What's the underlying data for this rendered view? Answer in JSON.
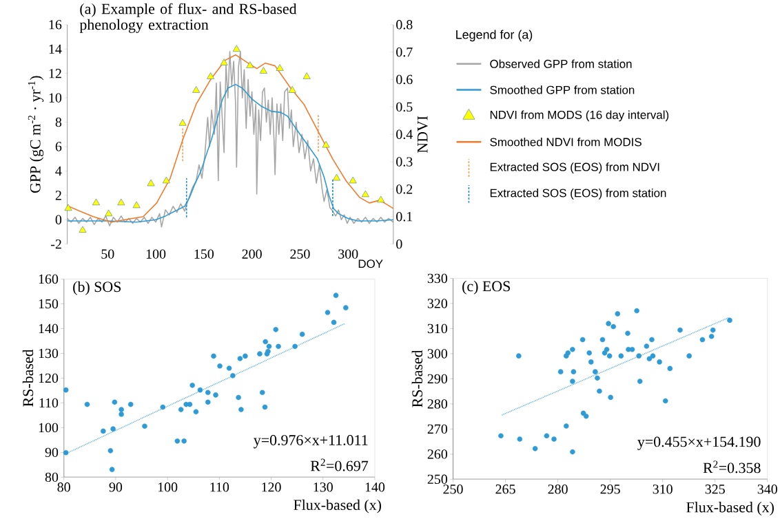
{
  "chart_data": [
    {
      "type": "line",
      "title": "(a) Example of flux- and RS-based phenology extraction",
      "xlabel": "DOY",
      "ylabel": "GPP (gC m$^{-2}$ · yr$^{-1}$)",
      "y2label": "NDVI",
      "legend_title": "Legend for (a)",
      "legend": "right",
      "xlim": [
        8,
        347
      ],
      "xticks": [
        50,
        100,
        150,
        200,
        250,
        300
      ],
      "ylim": [
        -2,
        16
      ],
      "yticks": [
        -2,
        0,
        2,
        4,
        6,
        8,
        10,
        12,
        14,
        16
      ],
      "y2lim": [
        0,
        0.8
      ],
      "y2ticks": [
        0,
        0.1,
        0.2,
        0.3,
        0.4,
        0.5,
        0.6,
        0.7,
        0.8
      ],
      "series": [
        {
          "name": "Observed GPP from station",
          "type": "line",
          "color": "#a6a6a6",
          "x": [
            8,
            12,
            16,
            20,
            24,
            28,
            32,
            36,
            40,
            44,
            48,
            52,
            56,
            60,
            64,
            68,
            72,
            76,
            80,
            84,
            88,
            92,
            96,
            100,
            104,
            106,
            110,
            114,
            118,
            122,
            126,
            130,
            134,
            138,
            142,
            145,
            148,
            151,
            154,
            156,
            158,
            161,
            163,
            165,
            167,
            169,
            171,
            173,
            175,
            177,
            179,
            181,
            183,
            184,
            186,
            188,
            190,
            192,
            194,
            196,
            198,
            200,
            202,
            204,
            205,
            207,
            209,
            211,
            213,
            215,
            217,
            219,
            221,
            223,
            224,
            226,
            228,
            230,
            232,
            234,
            237,
            239,
            241,
            243,
            246,
            249,
            252,
            255,
            258,
            261,
            264,
            267,
            270,
            273,
            275,
            278,
            281,
            284,
            287,
            290,
            293,
            296,
            299,
            302,
            306,
            310,
            314,
            318,
            322,
            326,
            330,
            334,
            338,
            342,
            347
          ],
          "values": [
            0.1,
            -0.2,
            0.2,
            -0.3,
            0.1,
            -0.2,
            0.2,
            -0.4,
            0.1,
            -0.2,
            0.3,
            -0.5,
            0.2,
            -0.2,
            0.3,
            -0.2,
            0.1,
            -0.3,
            0.1,
            -0.2,
            0.2,
            -0.3,
            0.2,
            -0.2,
            0.5,
            -0.6,
            0.8,
            0.4,
            1.1,
            0.6,
            1.3,
            0.7,
            1.7,
            2.6,
            3.2,
            4.5,
            3.4,
            5.3,
            8.4,
            6.0,
            9.0,
            7.0,
            11.2,
            3.2,
            11.3,
            8.5,
            5.5,
            12.7,
            10.0,
            13.8,
            11.0,
            13.0,
            9.5,
            4.3,
            12.5,
            13.8,
            10.0,
            12.3,
            7.5,
            11.5,
            8.5,
            10.5,
            7.0,
            9.5,
            2.1,
            9.0,
            6.5,
            10.5,
            10.8,
            8.0,
            9.8,
            7.0,
            10.0,
            6.5,
            3.7,
            9.5,
            7.0,
            9.5,
            6.5,
            10.5,
            10.8,
            7.5,
            9.0,
            6.0,
            8.0,
            5.5,
            7.0,
            5.0,
            6.5,
            4.0,
            5.0,
            3.0,
            4.5,
            2.5,
            1.5,
            2.5,
            1.0,
            0.7,
            0.3,
            0.8,
            0.0,
            0.4,
            -0.3,
            0.2,
            -0.3,
            0.1,
            -0.2,
            0.2,
            -0.3,
            0.1,
            -0.2,
            0.2,
            -0.2,
            0.1,
            -0.2
          ]
        },
        {
          "name": "Smoothed GPP from station",
          "type": "line",
          "color": "#2e9ad6",
          "x": [
            8,
            30,
            50,
            80,
            100,
            110,
            120,
            130,
            135,
            140,
            147,
            152,
            158,
            163,
            169,
            175,
            183,
            190,
            200,
            210,
            220,
            230,
            237,
            243,
            250,
            260,
            268,
            275,
            280,
            285,
            290,
            300,
            310,
            330,
            347
          ],
          "values": [
            -0.1,
            -0.1,
            -0.1,
            -0.2,
            0,
            0.3,
            0.7,
            1.1,
            1.8,
            2.8,
            4.0,
            5.2,
            6.6,
            8.0,
            9.8,
            10.8,
            11.1,
            10.8,
            9.9,
            9.3,
            8.9,
            8.8,
            8.5,
            7.8,
            7.0,
            5.9,
            5.0,
            3.5,
            2.0,
            0.9,
            0.5,
            0.1,
            -0.1,
            -0.1,
            0
          ]
        },
        {
          "name": "NDVI from MODS (16 day interval)",
          "type": "scatter",
          "axis": "y2",
          "marker": "triangle",
          "color": "#ffff00",
          "x": [
            9,
            24,
            38,
            51,
            64,
            80,
            95,
            111,
            128,
            142,
            157,
            171,
            184,
            198,
            212,
            229,
            242,
            257,
            277,
            288,
            305,
            318,
            334
          ],
          "values": [
            0.13,
            0.05,
            0.15,
            0.11,
            0.15,
            0.14,
            0.22,
            0.23,
            0.44,
            0.56,
            0.61,
            0.66,
            0.71,
            0.65,
            0.63,
            0.64,
            0.56,
            0.61,
            0.36,
            0.24,
            0.23,
            0.18,
            0.16
          ]
        },
        {
          "name": "Smoothed NDVI from MODIS",
          "type": "line",
          "axis": "y2",
          "color": "#f47a2a",
          "x": [
            8,
            21,
            35,
            54,
            70,
            87,
            101,
            115,
            128,
            142,
            157,
            172,
            183,
            196,
            205,
            214,
            224,
            240,
            254,
            269,
            284,
            298,
            312,
            322,
            333,
            347
          ],
          "values": [
            0.14,
            0.12,
            0.1,
            0.08,
            0.09,
            0.1,
            0.15,
            0.24,
            0.38,
            0.51,
            0.6,
            0.67,
            0.69,
            0.66,
            0.64,
            0.66,
            0.65,
            0.57,
            0.51,
            0.41,
            0.31,
            0.23,
            0.17,
            0.15,
            0.16,
            0.13
          ]
        },
        {
          "name": "Extracted SOS (EOS) from NDVI",
          "type": "line",
          "line_style": "dashed",
          "color": "#f4a05a",
          "x": [
            128,
            128,
            200,
            269,
            269
          ],
          "values": [
            4.8,
            7.6,
            null,
            5.6,
            8.7
          ]
        },
        {
          "name": "Extracted SOS (EOS) from station",
          "type": "line",
          "line_style": "dashed",
          "color": "#1a8fc8",
          "x": [
            132,
            132,
            200,
            284,
            284
          ],
          "values": [
            0.2,
            3.4,
            null,
            0.3,
            3.4
          ]
        }
      ]
    },
    {
      "type": "scatter",
      "title": "(b) SOS",
      "xlabel": "Flux-based (x)",
      "ylabel": "RS-based",
      "xlim": [
        80,
        140
      ],
      "xticks": [
        80,
        90,
        100,
        110,
        120,
        130,
        140
      ],
      "ylim": [
        80,
        160
      ],
      "yticks": [
        80,
        90,
        100,
        110,
        120,
        130,
        140,
        150,
        160
      ],
      "annotations": [
        "y=0.976×x+11.011",
        "R$^{2}$=0.697"
      ],
      "series": [
        {
          "type": "scatter",
          "marker": "circle",
          "color": "#2e9bd6",
          "x": [
            80.4,
            80.4,
            84.5,
            87.6,
            89.0,
            89.3,
            89.5,
            89.8,
            91.1,
            91.1,
            92.9,
            95.6,
            99.1,
            101.9,
            102.6,
            103.2,
            103.6,
            104.3,
            104.8,
            105.5,
            106.3,
            107.8,
            107.8,
            108.9,
            109.3,
            110.1,
            111.9,
            112.6,
            113.7,
            114.0,
            114.2,
            115.0,
            117.8,
            118.3,
            118.8,
            118.9,
            119.2,
            119.4,
            119.6,
            120.9,
            121.4,
            124.6,
            126.0,
            130.9,
            132.1,
            132.5,
            134.4
          ],
          "values": [
            115.2,
            89.9,
            109.4,
            98.6,
            90.7,
            83.1,
            99.5,
            110.3,
            105.4,
            107.3,
            109.4,
            100.6,
            108.3,
            94.6,
            107.3,
            94.6,
            109.4,
            109.4,
            117.1,
            106.4,
            115.2,
            110.3,
            114.2,
            128.9,
            113.2,
            124.9,
            124.0,
            121.0,
            112.2,
            127.9,
            107.3,
            128.9,
            129.8,
            114.2,
            108.3,
            134.7,
            129.8,
            130.8,
            132.8,
            139.6,
            132.8,
            132.8,
            137.7,
            146.5,
            142.5,
            153.4,
            148.4
          ]
        },
        {
          "type": "line",
          "line_style": "dotted",
          "color": "#5aaee0",
          "x": [
            80.4,
            134.2
          ],
          "values": [
            89.5,
            142.0
          ]
        }
      ]
    },
    {
      "type": "scatter",
      "title": "(c) EOS",
      "xlabel": "Flux-based (x)",
      "ylabel": "RS-based",
      "xlim": [
        250,
        340
      ],
      "xticks": [
        250,
        265,
        280,
        295,
        310,
        325,
        340
      ],
      "ylim": [
        250,
        330
      ],
      "yticks": [
        250,
        260,
        270,
        280,
        290,
        300,
        310,
        320,
        330
      ],
      "annotations": [
        "y=0.455×x+154.190",
        "R$^{2}$=0.358"
      ],
      "series": [
        {
          "type": "scatter",
          "marker": "circle",
          "color": "#2e9bd6",
          "x": [
            263.7,
            268.8,
            269.1,
            273.5,
            276.8,
            278.9,
            280.8,
            282.4,
            282.4,
            282.9,
            284.2,
            284.2,
            284.2,
            284.5,
            287.1,
            287.3,
            288.1,
            289.0,
            289.5,
            290.7,
            291.3,
            291.9,
            292.8,
            293.4,
            294.0,
            294.5,
            294.8,
            295.1,
            295.9,
            297.1,
            298.1,
            300.0,
            300.2,
            301.3,
            302.6,
            303.2,
            303.5,
            305.4,
            306.2,
            306.9,
            307.2,
            309.1,
            310.8,
            312.1,
            315.0,
            317.6,
            321.4,
            324.0,
            324.4,
            329.2
          ],
          "values": [
            267.3,
            299.1,
            266.0,
            262.2,
            267.3,
            266.0,
            292.8,
            271.2,
            299.1,
            300.3,
            301.7,
            289.0,
            260.9,
            292.8,
            305.6,
            276.3,
            275.1,
            300.3,
            296.7,
            292.8,
            290.3,
            285.1,
            305.6,
            300.3,
            301.7,
            312.0,
            299.1,
            282.6,
            310.8,
            315.9,
            299.1,
            308.1,
            301.7,
            301.7,
            317.1,
            299.1,
            289.0,
            303.0,
            298.0,
            305.6,
            299.1,
            296.7,
            281.2,
            294.1,
            309.4,
            299.1,
            305.6,
            306.9,
            309.4,
            313.3
          ]
        },
        {
          "type": "line",
          "line_style": "dotted",
          "color": "#5aaee0",
          "x": [
            264,
            329
          ],
          "values": [
            275.6,
            314.4
          ]
        }
      ]
    }
  ]
}
